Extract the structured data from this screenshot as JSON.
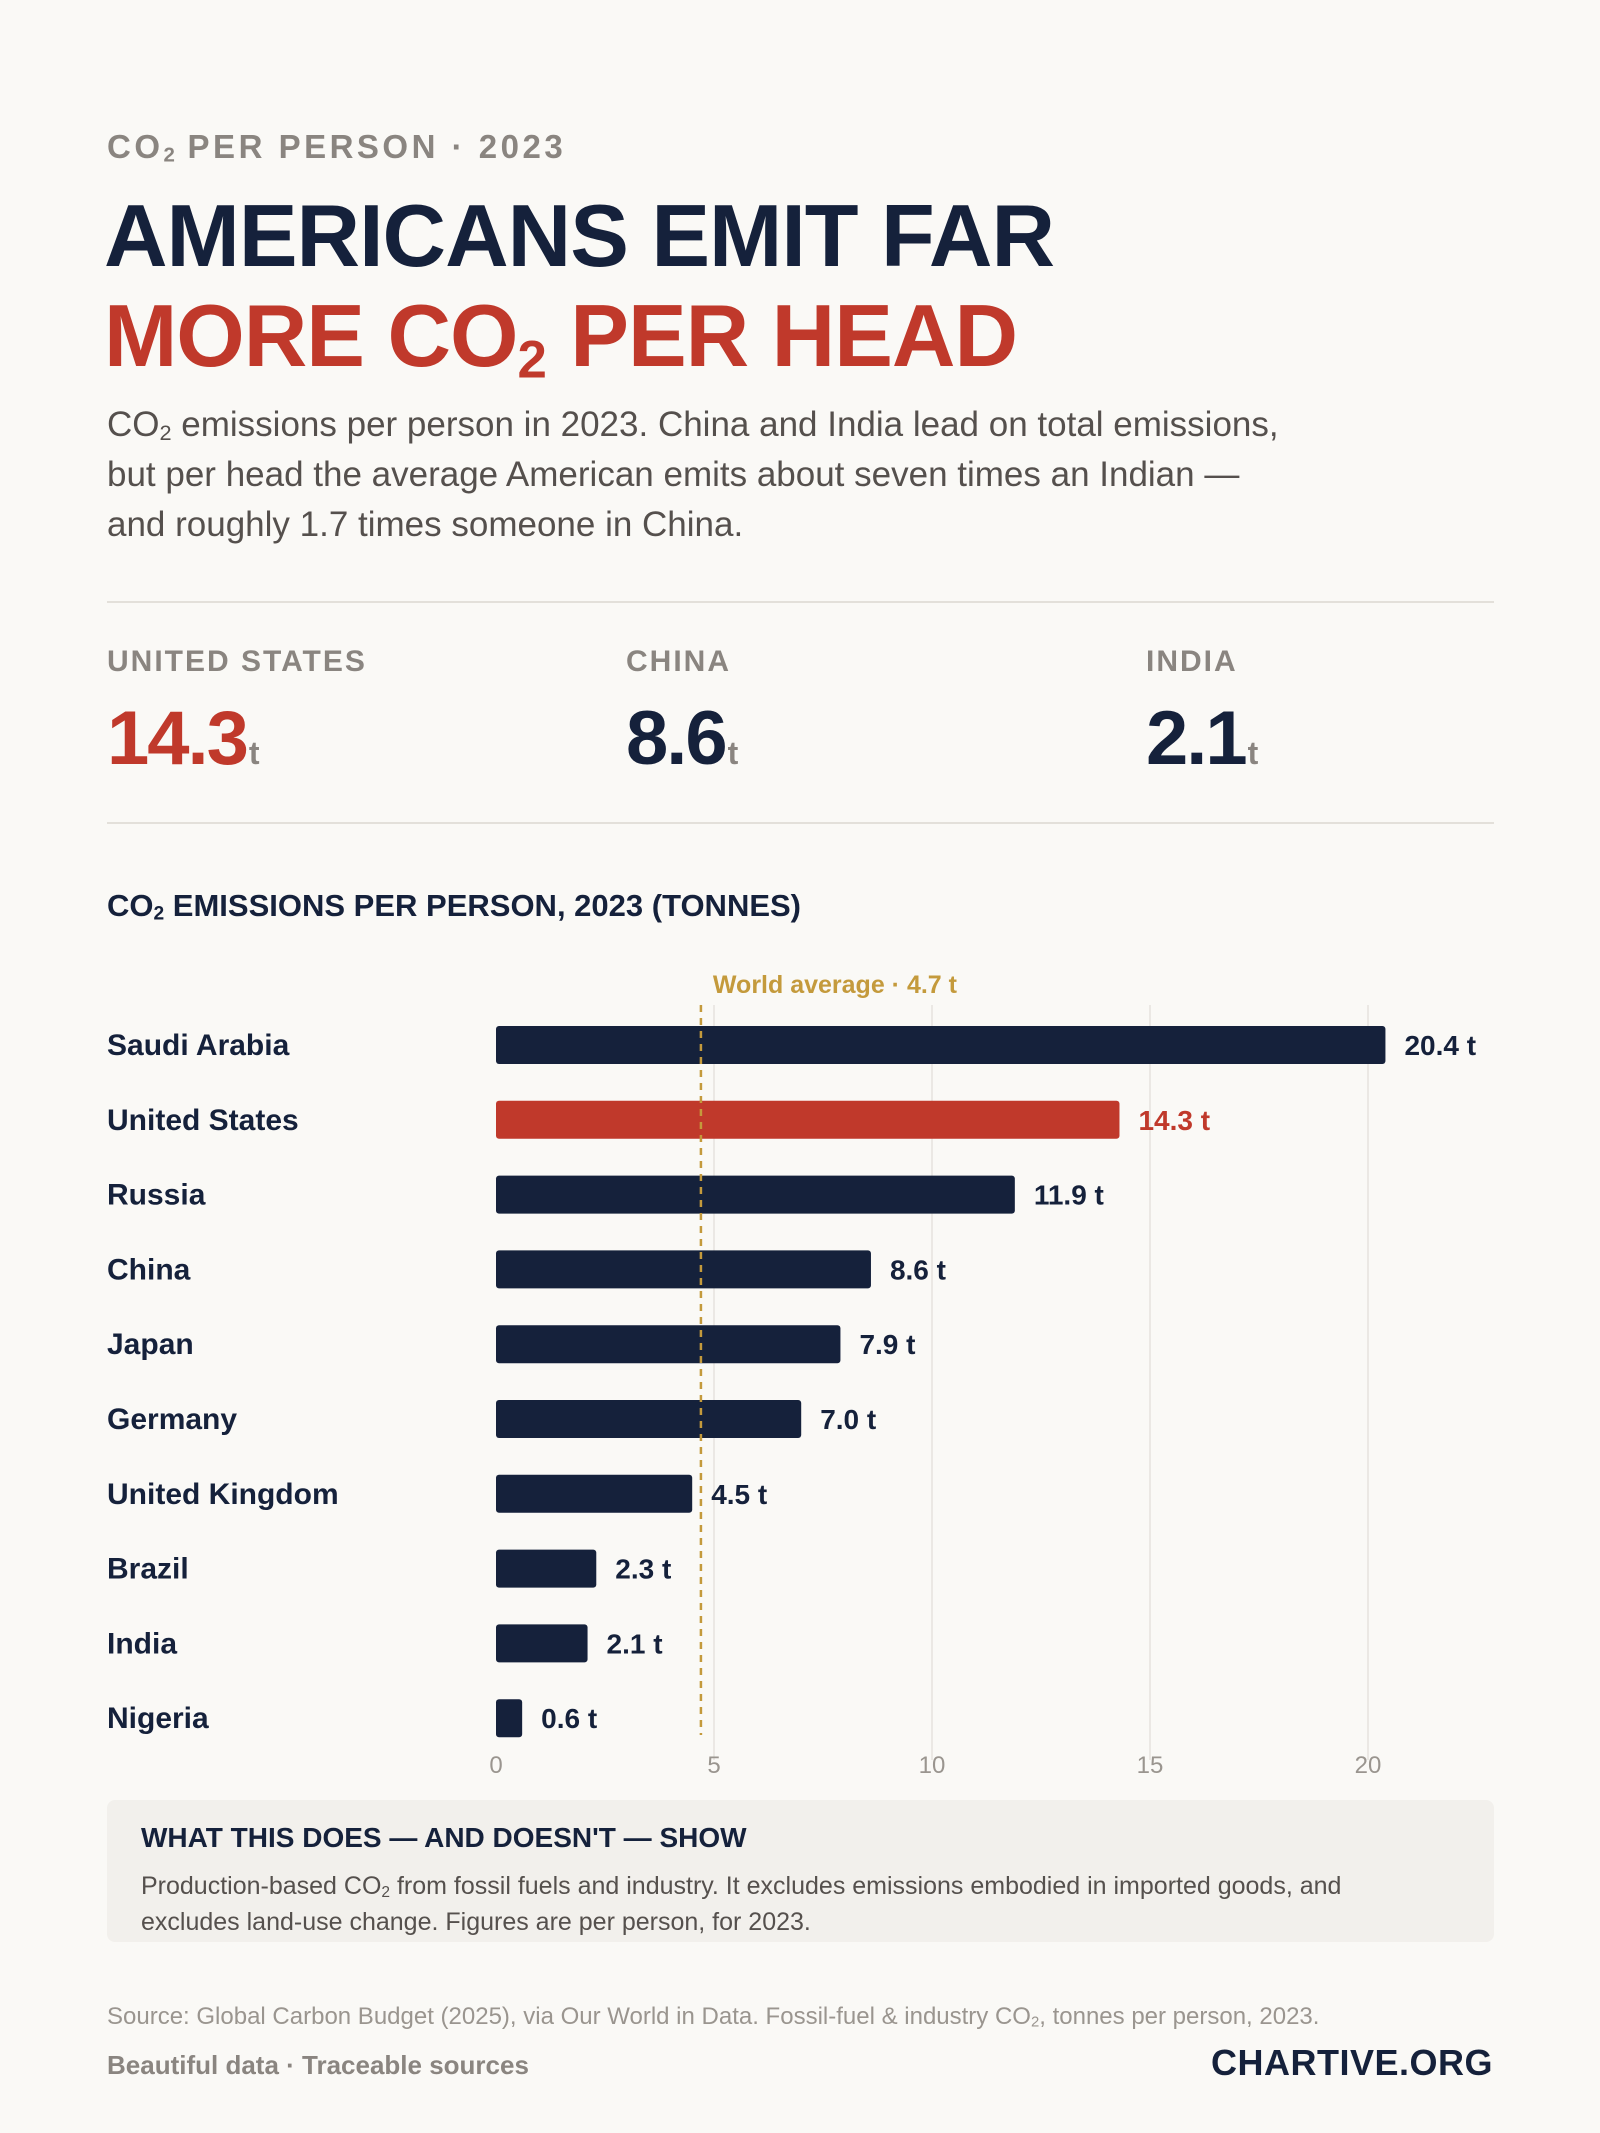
{
  "header": {
    "kicker_pre": "CO",
    "kicker_sub": "2",
    "kicker_post": " PER PERSON · 2023",
    "headline_line1": "AMERICANS EMIT FAR",
    "headline_line2_pre": "MORE CO",
    "headline_line2_sub": "2",
    "headline_line2_post": " PER HEAD",
    "dek_pre": "CO",
    "dek_sub": "2",
    "dek_post": " emissions per person in 2023. China and India lead on total emissions, but per head the average American emits about seven times an Indian — and roughly 1.7 times someone in China."
  },
  "stats": [
    {
      "label": "UNITED STATES",
      "value": "14.3",
      "unit": "t"
    },
    {
      "label": "CHINA",
      "value": "8.6",
      "unit": "t"
    },
    {
      "label": "INDIA",
      "value": "2.1",
      "unit": "t"
    }
  ],
  "colors": {
    "navy": "#15213b",
    "red": "#c0392b",
    "gold": "#c49a3c",
    "muted": "#8a8580"
  },
  "chart_data": {
    "type": "bar",
    "orientation": "horizontal",
    "title_pre": "CO",
    "title_sub": "2",
    "title_post": " EMISSIONS PER PERSON, 2023 (TONNES)",
    "categories": [
      "Saudi Arabia",
      "United States",
      "Russia",
      "China",
      "Japan",
      "Germany",
      "United Kingdom",
      "Brazil",
      "India",
      "Nigeria"
    ],
    "values": [
      20.4,
      14.3,
      11.9,
      8.6,
      7.9,
      7.0,
      4.5,
      2.3,
      2.1,
      0.6
    ],
    "value_labels": [
      "20.4 t",
      "14.3 t",
      "11.9 t",
      "8.6 t",
      "7.9 t",
      "7.0 t",
      "4.5 t",
      "2.3 t",
      "2.1 t",
      "0.6 t"
    ],
    "highlight": "United States",
    "xlim": [
      0,
      22
    ],
    "xticks": [
      0,
      5,
      10,
      15,
      20
    ],
    "grid": true,
    "reference_line": {
      "value": 4.7,
      "label": "World average · 4.7 t"
    }
  },
  "note": {
    "title": "WHAT THIS DOES — AND DOESN'T — SHOW",
    "body_pre": "Production-based CO",
    "body_sub": "2",
    "body_post": " from fossil fuels and industry. It excludes emissions embodied in imported goods, and excludes land-use change. Figures are per person, for 2023."
  },
  "footer": {
    "source_pre": "Source: Global Carbon Budget (2025), via Our World in Data. Fossil-fuel & industry CO",
    "source_sub": "2",
    "source_post": ", tonnes per person, 2023.",
    "tagline": "Beautiful data · Traceable sources",
    "brand": "CHARTIVE.ORG"
  }
}
